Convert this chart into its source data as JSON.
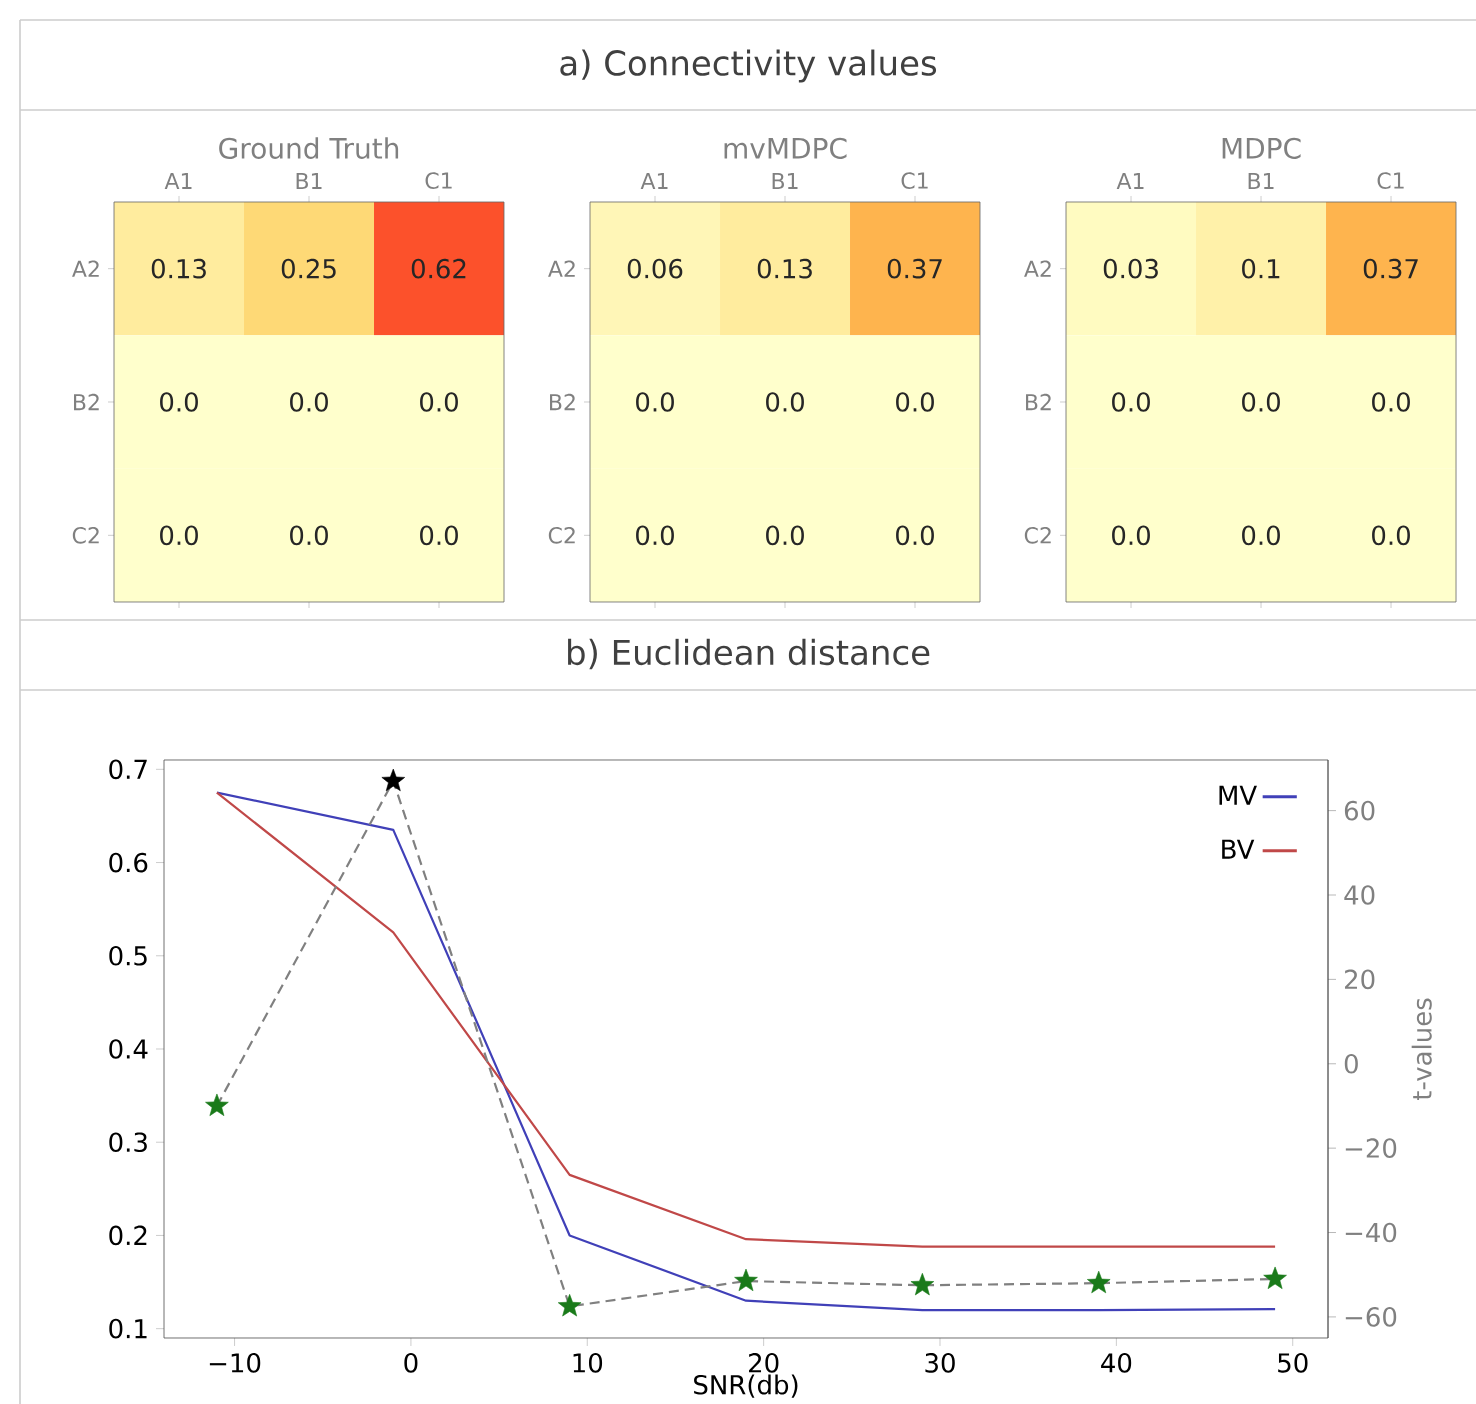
{
  "chart_data": [
    {
      "type": "heatmap",
      "title": "Ground Truth",
      "annotations": [
        "a) Connectivity values"
      ],
      "categories": [
        "A1",
        "B1",
        "C1"
      ],
      "y_categories": [
        "A2",
        "B2",
        "C2"
      ],
      "cells": [
        [
          0.13,
          0.25,
          0.62
        ],
        [
          0,
          0,
          0
        ],
        [
          0,
          0,
          0
        ]
      ],
      "cell_labels": [
        [
          "0.13",
          "0.25",
          "0.62"
        ],
        [
          "0.0",
          "0.0",
          "0.0"
        ],
        [
          "0.0",
          "0.0",
          "0.0"
        ]
      ]
    },
    {
      "type": "heatmap",
      "title": "mvMDPC",
      "categories": [
        "A1",
        "B1",
        "C1"
      ],
      "y_categories": [
        "A2",
        "B2",
        "C2"
      ],
      "cells": [
        [
          0.06,
          0.13,
          0.37
        ],
        [
          0,
          0,
          0
        ],
        [
          0,
          0,
          0
        ]
      ],
      "cell_labels": [
        [
          "0.06",
          "0.13",
          "0.37"
        ],
        [
          "0.0",
          "0.0",
          "0.0"
        ],
        [
          "0.0",
          "0.0",
          "0.0"
        ]
      ]
    },
    {
      "type": "heatmap",
      "title": "MDPC",
      "categories": [
        "A1",
        "B1",
        "C1"
      ],
      "y_categories": [
        "A2",
        "B2",
        "C2"
      ],
      "cells": [
        [
          0.03,
          0.1,
          0.37
        ],
        [
          0,
          0,
          0
        ],
        [
          0,
          0,
          0
        ]
      ],
      "cell_labels": [
        [
          "0.03",
          "0.1",
          "0.37"
        ],
        [
          "0.0",
          "0.0",
          "0.0"
        ],
        [
          "0.0",
          "0.0",
          "0.0"
        ]
      ]
    },
    {
      "type": "line",
      "title": "b) Euclidean distance",
      "xlabel": "SNR(db)",
      "y2label": "t-values",
      "x": [
        -11,
        -1,
        9,
        19,
        29,
        39,
        49
      ],
      "series": [
        {
          "name": "MV",
          "color": "#4040b8",
          "values": [
            0.675,
            0.635,
            0.2,
            0.13,
            0.12,
            0.12,
            0.121
          ]
        },
        {
          "name": "BV",
          "color": "#c04848",
          "values": [
            0.675,
            0.525,
            0.265,
            0.196,
            0.188,
            0.188,
            0.188
          ]
        },
        {
          "color": "#808080",
          "colors": [
            "#1a7a1a",
            "#000000",
            "#1a7a1a",
            "#1a7a1a",
            "#1a7a1a",
            "#1a7a1a",
            "#1a7a1a"
          ],
          "axis": "y2",
          "line_style": "dashed",
          "marker": "star",
          "values": [
            -10,
            67,
            -57.5,
            -51.5,
            -52.5,
            -52,
            -51
          ]
        }
      ],
      "xlim": [
        -14,
        52
      ],
      "xticks": [
        {
          "value": -10,
          "label": "−10"
        },
        0,
        10,
        20,
        30,
        40,
        50
      ],
      "ylim": [
        0.09,
        0.71
      ],
      "yticks": [
        0.1,
        0.2,
        0.3,
        0.4,
        0.5,
        0.6,
        0.7
      ],
      "y2lim": [
        -65,
        72
      ],
      "y2ticks": [
        {
          "value": -60,
          "label": "−60"
        },
        {
          "value": -40,
          "label": "−40"
        },
        {
          "value": -20,
          "label": "−20"
        },
        0,
        20,
        40,
        60
      ],
      "legend": "top right"
    }
  ]
}
